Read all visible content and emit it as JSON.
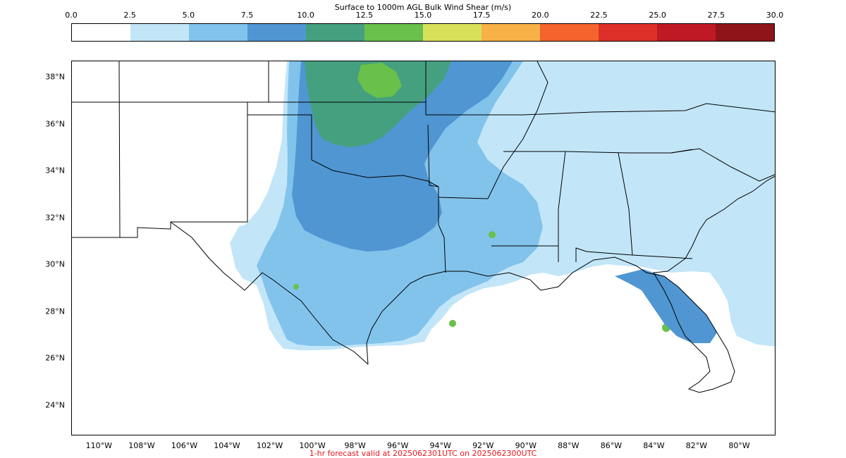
{
  "colorbar": {
    "title": "Surface to 1000m AGL Bulk Wind Shear (m/s)",
    "ticks": [
      "0.0",
      "2.5",
      "5.0",
      "7.5",
      "10.0",
      "12.5",
      "15.0",
      "17.5",
      "20.0",
      "22.5",
      "25.0",
      "27.5",
      "30.0"
    ],
    "colors": [
      "#ffffff",
      "#c2e6f8",
      "#82c3ec",
      "#5096d2",
      "#45a080",
      "#69c04a",
      "#d8e05a",
      "#f7b146",
      "#f4642c",
      "#de3028",
      "#bf1a24",
      "#8e141a"
    ]
  },
  "map": {
    "lat_labels": [
      "38°N",
      "36°N",
      "34°N",
      "32°N",
      "30°N",
      "28°N",
      "26°N",
      "24°N"
    ],
    "lon_labels": [
      "110°W",
      "108°W",
      "106°W",
      "104°W",
      "102°W",
      "100°W",
      "98°W",
      "96°W",
      "94°W",
      "92°W",
      "90°W",
      "88°W",
      "86°W",
      "84°W",
      "82°W",
      "80°W"
    ],
    "lat_values": [
      38,
      36,
      34,
      32,
      30,
      28,
      26,
      24
    ],
    "lon_values": [
      -110,
      -108,
      -106,
      -104,
      -102,
      -100,
      -98,
      -96,
      -94,
      -92,
      -90,
      -88,
      -86,
      -84,
      -82,
      -80
    ],
    "extent": {
      "lon_min": -111.3,
      "lon_max": -78.3,
      "lat_min": 22.7,
      "lat_max": 38.7
    },
    "shear_fill_colors": {
      "light_blue": "#c2e6f8",
      "mid_blue": "#82c3ec",
      "blue": "#5096d2",
      "green_teal": "#45a080",
      "green": "#69c04a",
      "land_line": "#000000"
    }
  },
  "footer": {
    "text": "1-hr forecast valid at 2025062301UTC on 2025062300UTC"
  }
}
